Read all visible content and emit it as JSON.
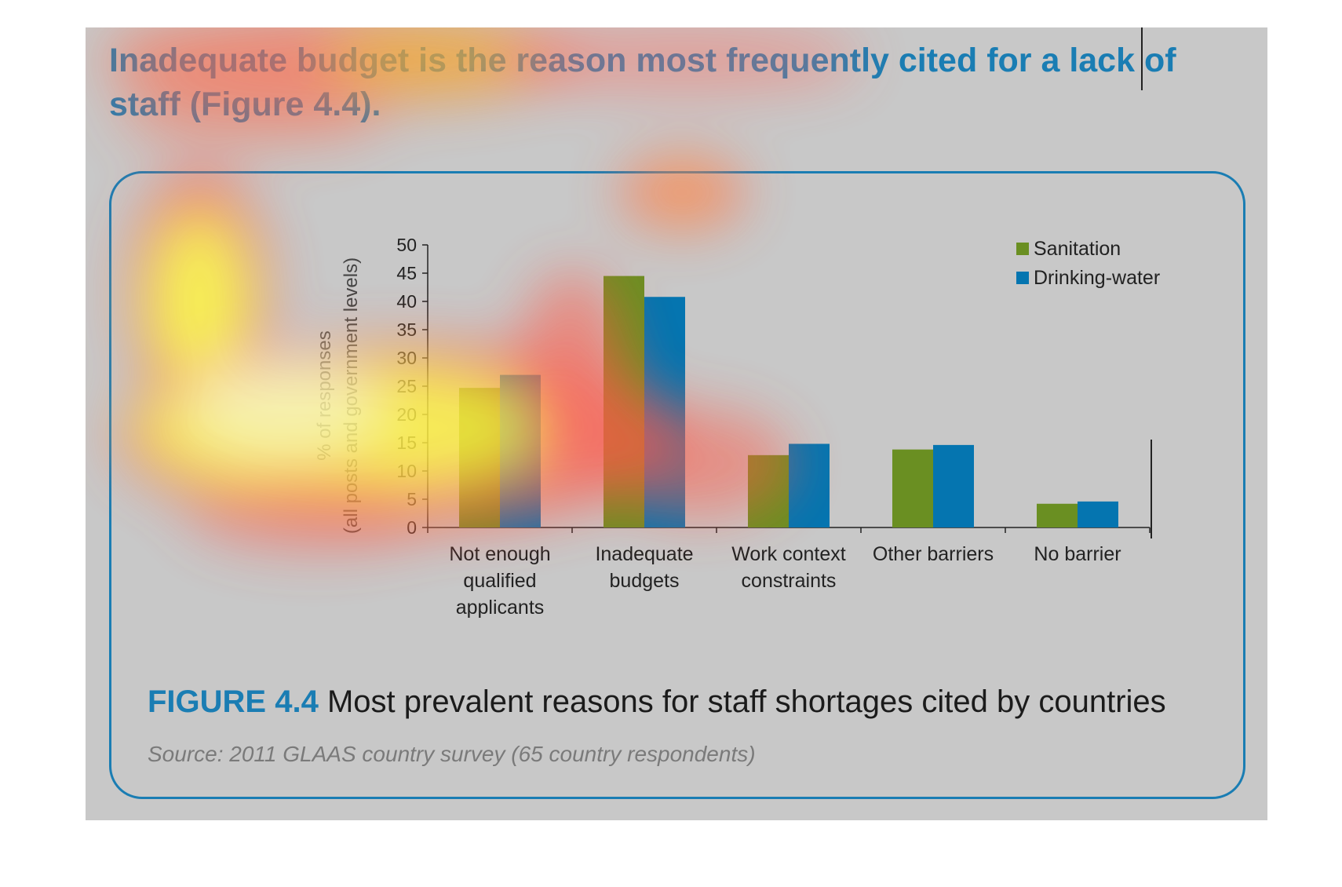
{
  "headline": "Inadequate budget is the reason most frequently cited for a lack of staff (Figure 4.4).",
  "figure": {
    "label": "FIGURE 4.4",
    "title": "Most prevalent reasons for staff shortages cited by countries",
    "source": "Source: 2011 GLAAS country survey (65 country respondents)"
  },
  "colors": {
    "accent": "#1a7db3",
    "sanitation": "#6a8f22",
    "drinking_water": "#0575b0",
    "page_background": "#c8c8c8"
  },
  "chart_data": {
    "type": "bar",
    "title": "",
    "ylabel_line1": "% of responses",
    "ylabel_line2": "(all posts and government levels)",
    "xlabel": "",
    "ylim": [
      0,
      50
    ],
    "yticks": [
      0,
      5,
      10,
      15,
      20,
      25,
      30,
      35,
      40,
      45,
      50
    ],
    "categories": [
      [
        "Not enough",
        "qualified",
        "applicants"
      ],
      [
        "Inadequate",
        "budgets"
      ],
      [
        "Work context",
        "constraints"
      ],
      [
        "Other barriers"
      ],
      [
        "No barrier"
      ]
    ],
    "series": [
      {
        "name": "Sanitation",
        "color": "#6a8f22",
        "values": [
          24.7,
          44.5,
          12.8,
          13.8,
          4.2
        ]
      },
      {
        "name": "Drinking-water",
        "color": "#0575b0",
        "values": [
          27.0,
          40.8,
          14.8,
          14.6,
          4.6
        ]
      }
    ],
    "legend_position": "top-right",
    "grid": false
  }
}
